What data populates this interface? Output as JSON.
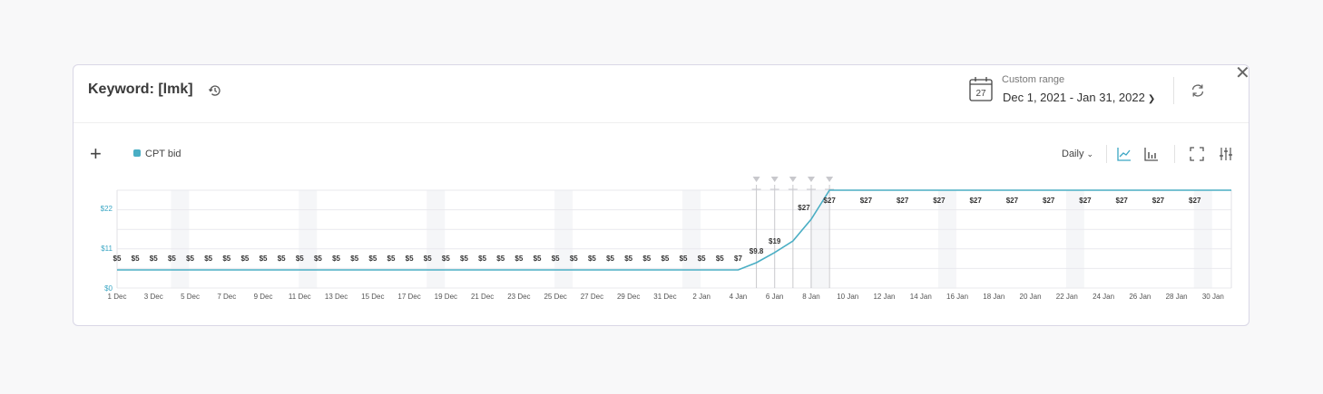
{
  "header": {
    "title": "Keyword: [lmk]",
    "range_label": "Custom range",
    "range_value": "Dec 1, 2021 - Jan 31, 2022",
    "calendar_day": "27"
  },
  "toolbar": {
    "legend_label": "CPT bid",
    "period": "Daily"
  },
  "colors": {
    "series": "#4aaec4",
    "accent": "#3aa6c4",
    "text": "#333333"
  },
  "icons": [
    "history-icon",
    "calendar-icon",
    "chevron-down-icon",
    "refresh-icon",
    "close-icon",
    "plus-icon",
    "line-chart-icon",
    "bar-chart-icon",
    "fullscreen-icon",
    "settings-sliders-icon"
  ],
  "chart_data": {
    "type": "line",
    "ylim": [
      0,
      27
    ],
    "y_ticks": [
      "$0",
      "$11",
      "$22"
    ],
    "x_ticks": [
      "1 Dec",
      "3 Dec",
      "5 Dec",
      "7 Dec",
      "9 Dec",
      "11 Dec",
      "13 Dec",
      "15 Dec",
      "17 Dec",
      "19 Dec",
      "21 Dec",
      "23 Dec",
      "25 Dec",
      "27 Dec",
      "29 Dec",
      "31 Dec",
      "2 Jan",
      "4 Jan",
      "6 Jan",
      "8 Jan",
      "10 Jan",
      "12 Jan",
      "14 Jan",
      "16 Jan",
      "18 Jan",
      "20 Jan",
      "22 Jan",
      "24 Jan",
      "26 Jan",
      "28 Jan",
      "30 Jan"
    ],
    "series": [
      {
        "values": [
          5,
          5,
          5,
          5,
          5,
          5,
          5,
          5,
          5,
          5,
          5,
          5,
          5,
          5,
          5,
          5,
          5,
          5,
          5,
          5,
          5,
          5,
          5,
          5,
          5,
          5,
          5,
          5,
          5,
          5,
          5,
          5,
          5,
          5,
          5,
          7,
          9.8,
          13,
          19,
          27,
          27,
          27,
          27,
          27,
          27,
          27,
          27,
          27,
          27,
          27,
          27,
          27,
          27,
          27,
          27,
          27,
          27,
          27,
          27,
          27,
          27,
          27
        ],
        "color": "#4aaec4"
      }
    ],
    "data_labels": [
      "$5",
      "$5",
      "$5",
      "$5",
      "$5",
      "$5",
      "$5",
      "$5",
      "$5",
      "$5",
      "$5",
      "$5",
      "$5",
      "$5",
      "$5",
      "$5",
      "$5",
      "$5",
      "$5",
      "$5",
      "$5",
      "$5",
      "$5",
      "$5",
      "$5",
      "$5",
      "$5",
      "$5",
      "$5",
      "$5",
      "$5",
      "$5",
      "$5",
      "$5",
      "$7",
      "$9.8",
      "$19",
      "$27",
      "$27",
      "$27",
      "$27",
      "$27",
      "$27",
      "$27",
      "$27",
      "$27",
      "$27",
      "$27",
      "$27"
    ],
    "grid": true,
    "legend": "top-left"
  }
}
